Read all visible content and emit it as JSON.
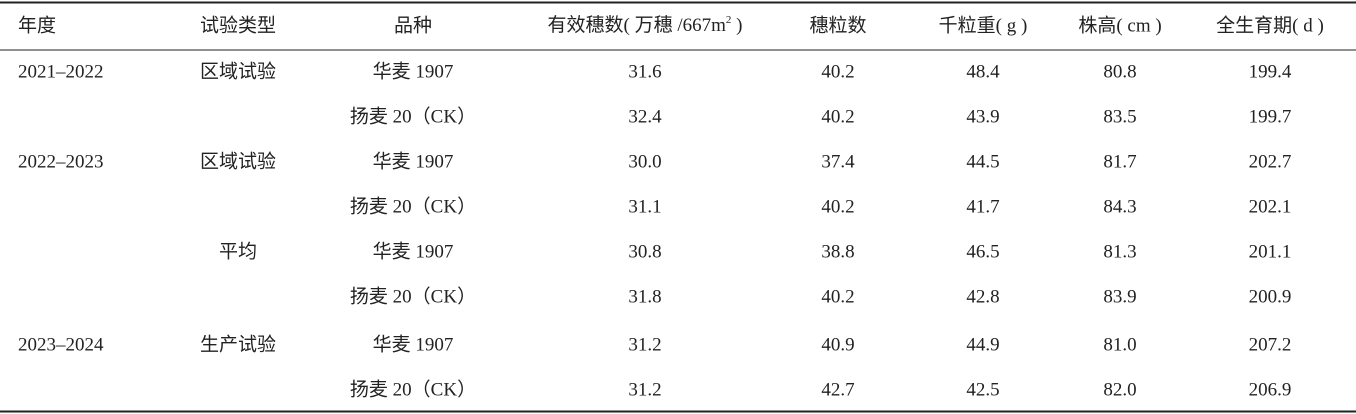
{
  "table": {
    "header": [
      "年度",
      "试验类型",
      "品种",
      {
        "text": "有效穗数( 万穗 /667m",
        "sup": "2",
        "tail": " )"
      },
      "穗粒数",
      "千粒重( g )",
      "株高( cm )",
      "全生育期( d )"
    ],
    "rows": [
      [
        "2021–2022",
        "区域试验",
        "华麦 1907",
        "31.6",
        "40.2",
        "48.4",
        "80.8",
        "199.4"
      ],
      [
        null,
        null,
        "扬麦 20（CK）",
        "32.4",
        "40.2",
        "43.9",
        "83.5",
        "199.7"
      ],
      [
        "2022–2023",
        "区域试验",
        "华麦 1907",
        "30.0",
        "37.4",
        "44.5",
        "81.7",
        "202.7"
      ],
      [
        null,
        null,
        "扬麦 20（CK）",
        "31.1",
        "40.2",
        "41.7",
        "84.3",
        "202.1"
      ],
      [
        null,
        "平均",
        "华麦 1907",
        "30.8",
        "38.8",
        "46.5",
        "81.3",
        "201.1"
      ],
      [
        null,
        null,
        "扬麦 20（CK）",
        "31.8",
        "40.2",
        "42.8",
        "83.9",
        "200.9"
      ],
      [
        "2023–2024",
        "生产试验",
        "华麦 1907",
        "31.2",
        "40.9",
        "44.9",
        "81.0",
        "207.2"
      ],
      [
        null,
        null,
        "扬麦 20（CK）",
        "31.2",
        "42.7",
        "42.5",
        "82.0",
        "206.9"
      ]
    ]
  }
}
